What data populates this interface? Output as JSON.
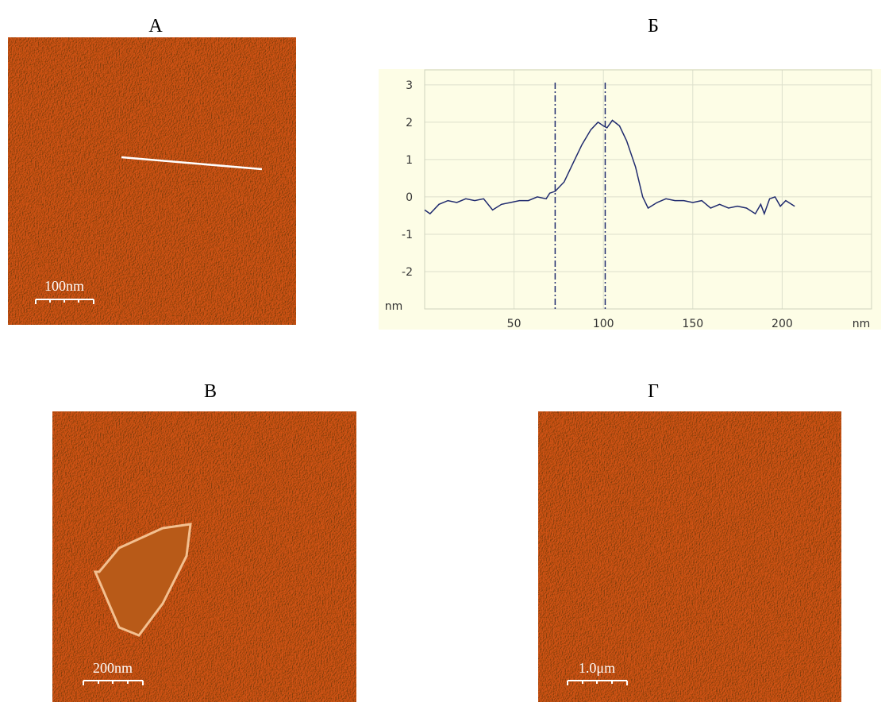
{
  "panels": {
    "a": {
      "label": "А",
      "scale_bar": "100nm"
    },
    "b": {
      "label": "Б"
    },
    "c": {
      "label": "В",
      "scale_bar": "200nm"
    },
    "d": {
      "label": "Г",
      "scale_bar": "1.0μm"
    }
  },
  "chart_data": {
    "type": "line",
    "x_label": "nm",
    "y_label": "nm",
    "x": [
      0,
      3,
      8,
      13,
      18,
      23,
      28,
      33,
      38,
      43,
      48,
      53,
      58,
      63,
      68,
      70,
      73,
      78,
      83,
      88,
      93,
      97,
      100,
      102,
      105,
      109,
      113,
      118,
      122,
      125,
      130,
      135,
      140,
      145,
      150,
      155,
      160,
      165,
      170,
      175,
      180,
      185,
      188,
      190,
      193,
      196,
      199,
      202,
      207
    ],
    "series": [
      {
        "color": "#1f2a6e",
        "values": [
          -0.35,
          -0.45,
          -0.2,
          -0.1,
          -0.15,
          -0.05,
          -0.1,
          -0.05,
          -0.35,
          -0.2,
          -0.15,
          -0.1,
          -0.1,
          0.0,
          -0.05,
          0.1,
          0.15,
          0.4,
          0.9,
          1.4,
          1.8,
          2.0,
          1.9,
          1.85,
          2.05,
          1.9,
          1.5,
          0.8,
          0.0,
          -0.3,
          -0.15,
          -0.05,
          -0.1,
          -0.1,
          -0.15,
          -0.1,
          -0.3,
          -0.2,
          -0.3,
          -0.25,
          -0.3,
          -0.45,
          -0.2,
          -0.45,
          -0.05,
          0.0,
          -0.25,
          -0.1,
          -0.25
        ]
      }
    ],
    "xlim": [
      0,
      250
    ],
    "ylim": [
      -3,
      3.4
    ],
    "xticks": [
      50,
      100,
      150,
      200
    ],
    "yticks": [
      -2,
      -1,
      0,
      1,
      2,
      3
    ],
    "grid": true,
    "markers": [
      73,
      101
    ],
    "marker_color": "#1f2a6e"
  }
}
